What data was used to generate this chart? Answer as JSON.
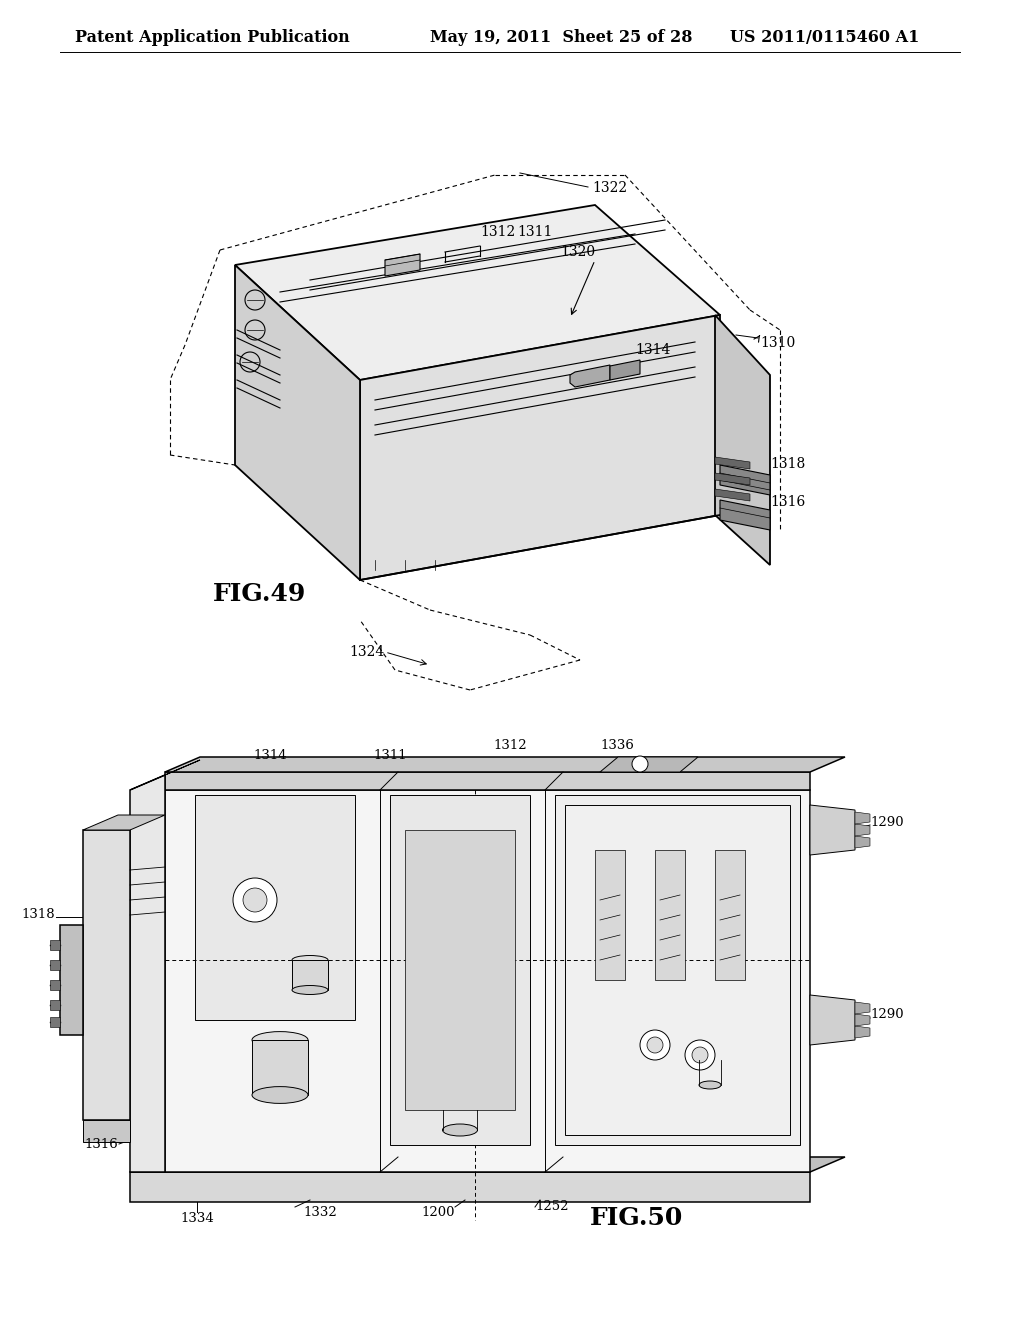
{
  "background_color": "#ffffff",
  "header": {
    "left_text": "Patent Application Publication",
    "center_text": "May 19, 2011  Sheet 25 of 28",
    "right_text": "US 2011/0115460 A1",
    "font_size": 11.5
  },
  "fig49_label": "FIG.49",
  "fig50_label": "FIG.50"
}
